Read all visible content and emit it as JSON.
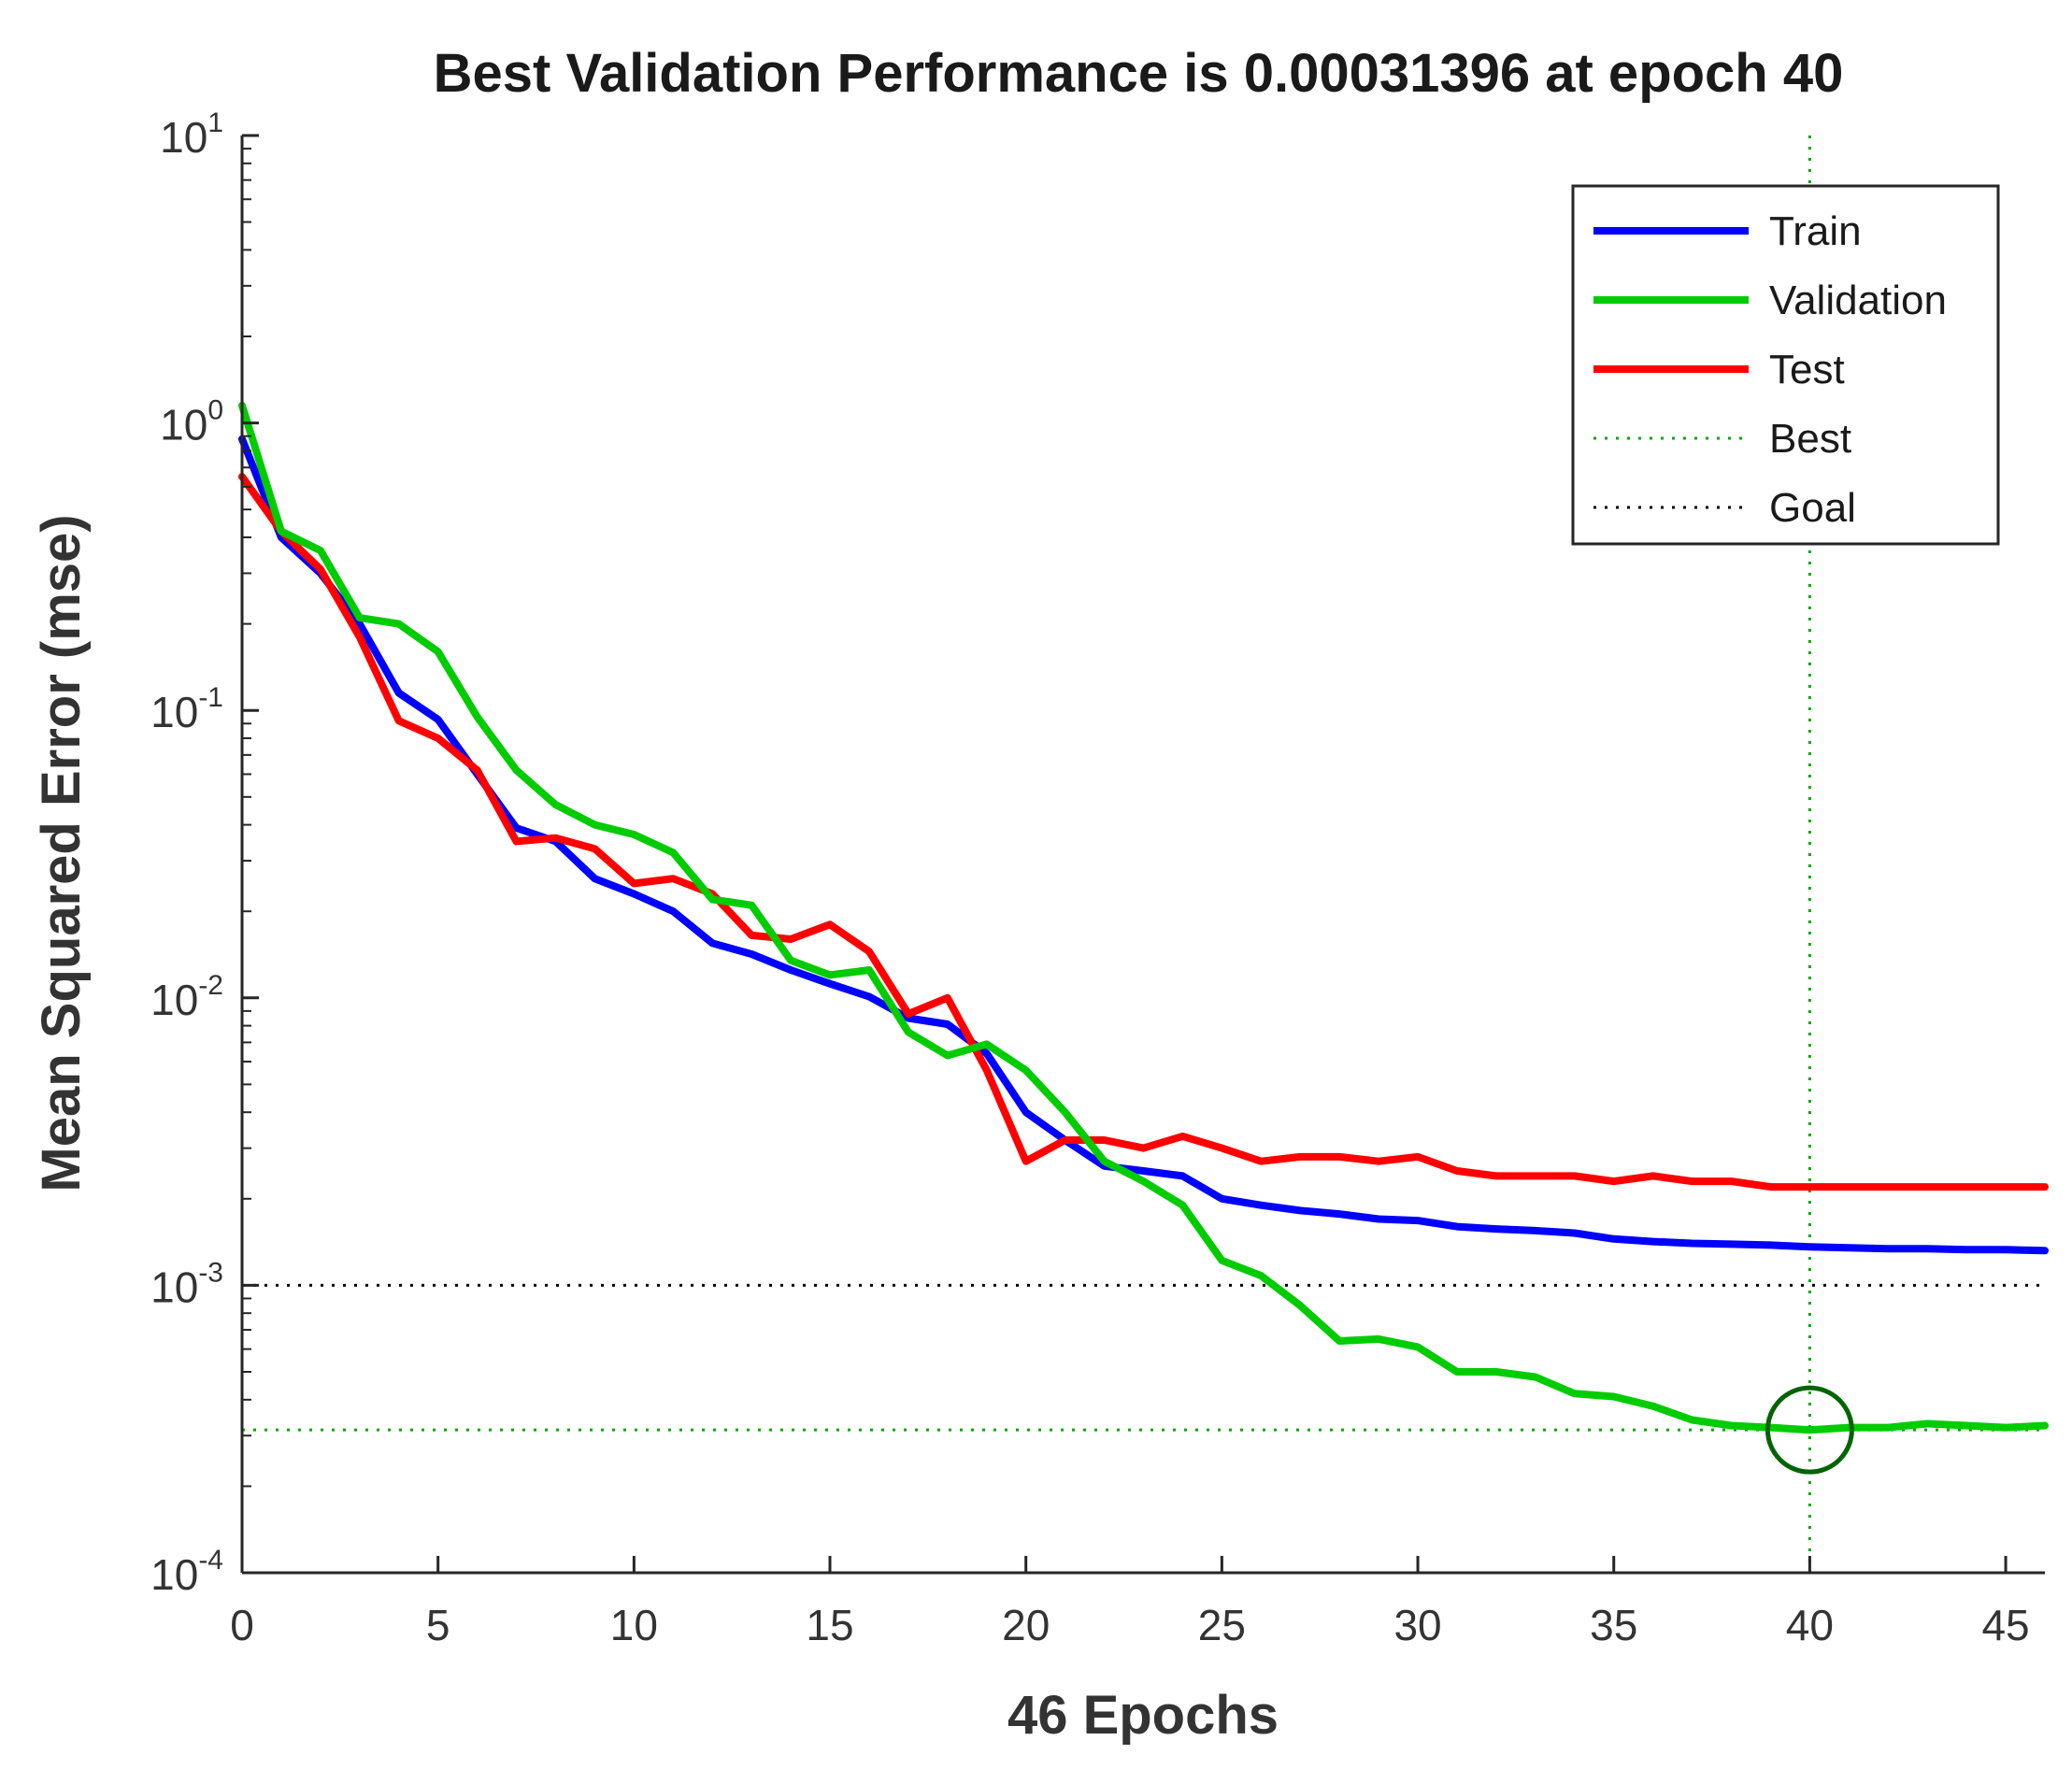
{
  "chart_data": {
    "type": "line",
    "title": "Best Validation Performance is 0.00031396 at epoch 40",
    "xlabel": "46 Epochs",
    "ylabel": "Mean Squared Error  (mse)",
    "xlim": [
      0,
      46
    ],
    "ylim": [
      0.0001,
      10
    ],
    "yscale": "log",
    "xticks": [
      0,
      5,
      10,
      15,
      20,
      25,
      30,
      35,
      40,
      45
    ],
    "yticks": [
      {
        "value": 0.0001,
        "base": "10",
        "exp": "-4"
      },
      {
        "value": 0.001,
        "base": "10",
        "exp": "-3"
      },
      {
        "value": 0.01,
        "base": "10",
        "exp": "-2"
      },
      {
        "value": 0.1,
        "base": "10",
        "exp": "-1"
      },
      {
        "value": 1,
        "base": "10",
        "exp": "0"
      },
      {
        "value": 10,
        "base": "10",
        "exp": "1"
      }
    ],
    "legend_position": "top-right",
    "series": [
      {
        "name": "Train",
        "color": "#0000ff",
        "style": "solid",
        "x": [
          0,
          1,
          2,
          3,
          4,
          5,
          6,
          7,
          8,
          9,
          10,
          11,
          12,
          13,
          14,
          15,
          16,
          17,
          18,
          19,
          20,
          21,
          22,
          23,
          24,
          25,
          26,
          27,
          28,
          29,
          30,
          31,
          32,
          33,
          34,
          35,
          36,
          37,
          38,
          39,
          40,
          41,
          42,
          43,
          44,
          45,
          46
        ],
        "values": [
          0.88,
          0.4,
          0.3,
          0.2,
          0.115,
          0.093,
          0.06,
          0.039,
          0.035,
          0.026,
          0.023,
          0.02,
          0.0155,
          0.0142,
          0.0125,
          0.0112,
          0.0101,
          0.0085,
          0.0081,
          0.0064,
          0.004,
          0.0032,
          0.0026,
          0.0025,
          0.0024,
          0.002,
          0.0019,
          0.00182,
          0.00177,
          0.0017,
          0.00168,
          0.0016,
          0.00157,
          0.00155,
          0.00152,
          0.00145,
          0.00142,
          0.0014,
          0.00139,
          0.00138,
          0.00136,
          0.00135,
          0.00134,
          0.00134,
          0.00133,
          0.00133,
          0.00132
        ]
      },
      {
        "name": "Validation",
        "color": "#00cc00",
        "style": "solid",
        "x": [
          0,
          1,
          2,
          3,
          4,
          5,
          6,
          7,
          8,
          9,
          10,
          11,
          12,
          13,
          14,
          15,
          16,
          17,
          18,
          19,
          20,
          21,
          22,
          23,
          24,
          25,
          26,
          27,
          28,
          29,
          30,
          31,
          32,
          33,
          34,
          35,
          36,
          37,
          38,
          39,
          40,
          41,
          42,
          43,
          44,
          45,
          46
        ],
        "values": [
          1.15,
          0.42,
          0.36,
          0.21,
          0.2,
          0.16,
          0.095,
          0.062,
          0.047,
          0.04,
          0.037,
          0.032,
          0.022,
          0.021,
          0.0135,
          0.012,
          0.0125,
          0.0076,
          0.0063,
          0.0069,
          0.0056,
          0.004,
          0.0027,
          0.0023,
          0.0019,
          0.00122,
          0.00108,
          0.00085,
          0.00064,
          0.00065,
          0.00061,
          0.0005,
          0.0005,
          0.00048,
          0.00042,
          0.00041,
          0.00038,
          0.00034,
          0.000325,
          0.00032,
          0.00031396,
          0.00032,
          0.00032,
          0.00033,
          0.000325,
          0.00032,
          0.000325
        ]
      },
      {
        "name": "Test",
        "color": "#ff0000",
        "style": "solid",
        "x": [
          0,
          1,
          2,
          3,
          4,
          5,
          6,
          7,
          8,
          9,
          10,
          11,
          12,
          13,
          14,
          15,
          16,
          17,
          18,
          19,
          20,
          21,
          22,
          23,
          24,
          25,
          26,
          27,
          28,
          29,
          30,
          31,
          32,
          33,
          34,
          35,
          36,
          37,
          38,
          39,
          40,
          41,
          42,
          43,
          44,
          45,
          46
        ],
        "values": [
          0.65,
          0.42,
          0.31,
          0.18,
          0.092,
          0.08,
          0.062,
          0.035,
          0.036,
          0.033,
          0.025,
          0.026,
          0.023,
          0.0165,
          0.016,
          0.018,
          0.0145,
          0.0088,
          0.01,
          0.0056,
          0.0027,
          0.0032,
          0.0032,
          0.003,
          0.0033,
          0.003,
          0.0027,
          0.0028,
          0.0028,
          0.0027,
          0.0028,
          0.0025,
          0.0024,
          0.0024,
          0.0024,
          0.0023,
          0.0024,
          0.0023,
          0.0023,
          0.0022,
          0.0022,
          0.0022,
          0.0022,
          0.0022,
          0.0022,
          0.0022,
          0.0022
        ]
      },
      {
        "name": "Best",
        "color": "#00aa00",
        "style": "dotted",
        "marker": {
          "x": 40,
          "y": 0.00031396
        }
      },
      {
        "name": "Goal",
        "color": "#000000",
        "style": "dotted",
        "value": 0.001
      }
    ]
  }
}
